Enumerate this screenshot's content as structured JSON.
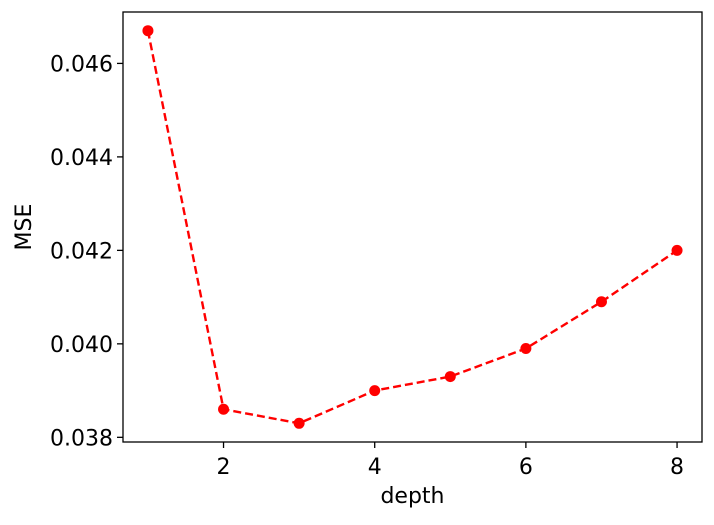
{
  "chart_data": {
    "type": "line",
    "title": "",
    "xlabel": "depth",
    "ylabel": "MSE",
    "xlim": [
      0.67,
      8.33
    ],
    "ylim": [
      0.0379,
      0.0471
    ],
    "x_ticks": [
      2,
      4,
      6,
      8
    ],
    "y_ticks": [
      0.038,
      0.04,
      0.042,
      0.044,
      0.046
    ],
    "x_tick_labels": [
      "2",
      "4",
      "6",
      "8"
    ],
    "y_tick_labels": [
      "0.038",
      "0.040",
      "0.042",
      "0.044",
      "0.046"
    ],
    "grid": false,
    "legend": "none",
    "series": [
      {
        "color": "#ff0000",
        "line_style": "dashed",
        "marker": "circle",
        "x": [
          1,
          2,
          3,
          4,
          5,
          6,
          7,
          8
        ],
        "y": [
          0.0467,
          0.0386,
          0.0383,
          0.039,
          0.0393,
          0.0399,
          0.0409,
          0.042
        ]
      }
    ]
  }
}
